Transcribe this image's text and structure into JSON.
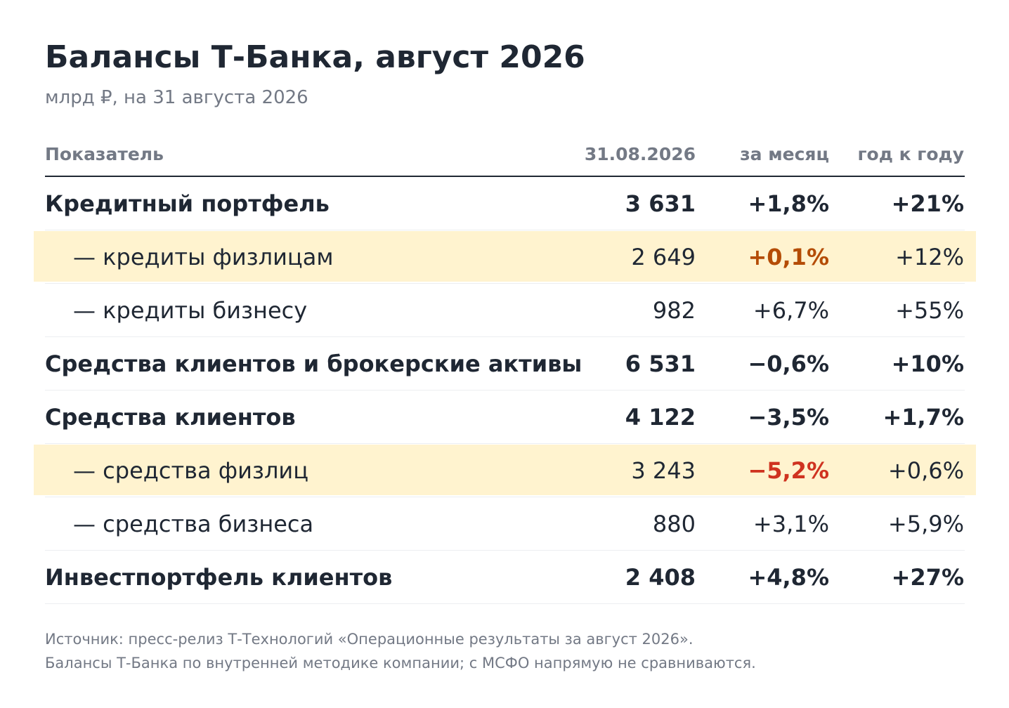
{
  "title": "Балансы Т-Банка, август 2026",
  "subtitle": "млрд ₽, на 31 августа 2026",
  "columns": {
    "name": "Показатель",
    "value": "31.08.2026",
    "mom": "за месяц",
    "yoy": "год к году"
  },
  "rows": [
    {
      "name": "Кредитный портфель",
      "value": "3 631",
      "mom": "+1,8%",
      "yoy": "+21%"
    },
    {
      "name": "— кредиты физлицам",
      "value": "2 649",
      "mom": "+0,1%",
      "yoy": "+12%"
    },
    {
      "name": "— кредиты бизнесу",
      "value": "982",
      "mom": "+6,7%",
      "yoy": "+55%"
    },
    {
      "name": "Средства клиентов и брокерские активы",
      "value": "6 531",
      "mom": "−0,6%",
      "yoy": "+10%"
    },
    {
      "name": "Средства клиентов",
      "value": "4 122",
      "mom": "−3,5%",
      "yoy": "+1,7%"
    },
    {
      "name": "— средства физлиц",
      "value": "3 243",
      "mom": "−5,2%",
      "yoy": "+0,6%"
    },
    {
      "name": "— средства бизнеса",
      "value": "880",
      "mom": "+3,1%",
      "yoy": "+5,9%"
    },
    {
      "name": "Инвестпортфель клиентов",
      "value": "2 408",
      "mom": "+4,8%",
      "yoy": "+27%"
    }
  ],
  "notes": [
    "Источник: пресс-релиз Т-Технологий «Операционные результаты за август 2026».",
    "Балансы Т-Банка по внутренней методике компании; с МСФО напрямую не сравниваются."
  ],
  "colors": {
    "highlight_bg": "#fff3cf",
    "accent_orange": "#b44c06",
    "accent_red": "#cf3320",
    "text": "#1f2733",
    "muted": "#737985"
  }
}
